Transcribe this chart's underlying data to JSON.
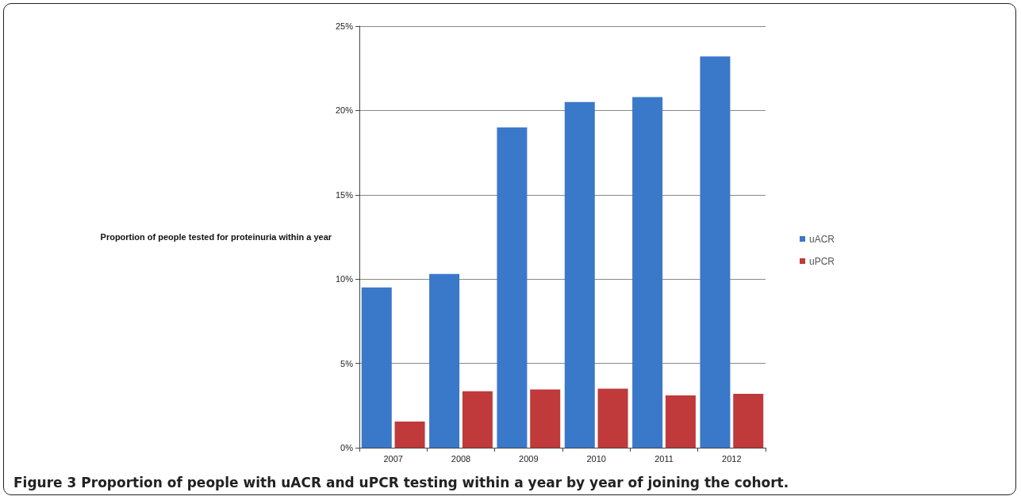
{
  "chart_data": {
    "type": "bar",
    "title": "Figure 3 Proportion of people with uACR and uPCR testing within a year by year of joining the cohort.",
    "ylabel": "Proportion of people tested for proteinuria within a year",
    "categories": [
      "2007",
      "2008",
      "2009",
      "2010",
      "2011",
      "2012"
    ],
    "series": [
      {
        "name": "uACR",
        "color": "#3a78c9",
        "values": [
          9.5,
          10.3,
          19.0,
          20.5,
          20.8,
          23.2
        ]
      },
      {
        "name": "uPCR",
        "color": "#c0393b",
        "values": [
          1.55,
          3.35,
          3.45,
          3.5,
          3.1,
          3.2
        ]
      }
    ],
    "ylim": [
      0,
      25
    ],
    "yticks": [
      {
        "value": 0,
        "label": "0%"
      },
      {
        "value": 5,
        "label": "5%"
      },
      {
        "value": 10,
        "label": "10%"
      },
      {
        "value": 15,
        "label": "15%"
      },
      {
        "value": 20,
        "label": "20%"
      },
      {
        "value": 25,
        "label": "25%"
      }
    ],
    "grid": "y",
    "legend": "right"
  }
}
